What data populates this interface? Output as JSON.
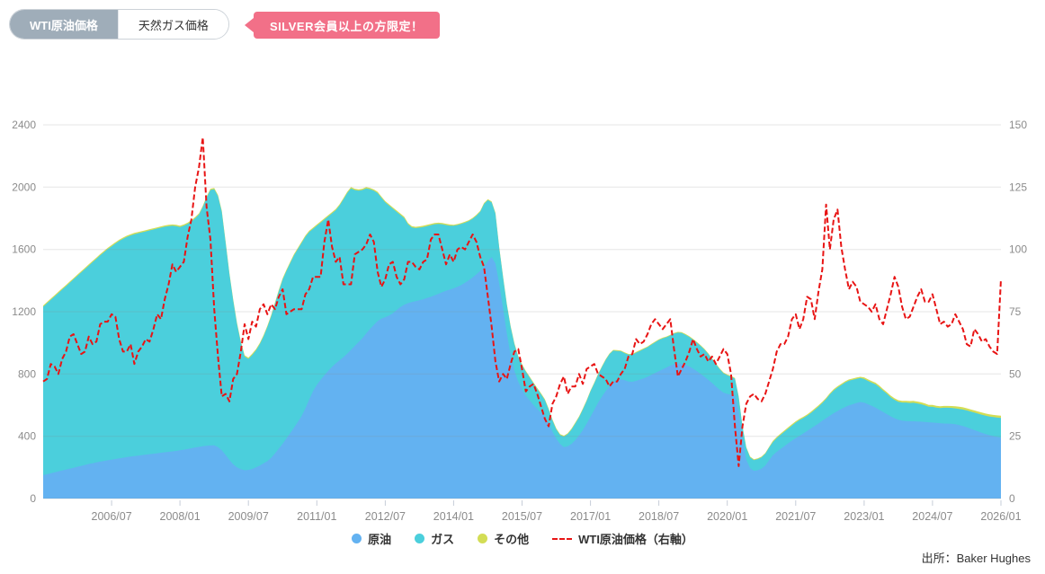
{
  "tabs": {
    "wti": "WTI原油価格",
    "gas": "天然ガス価格"
  },
  "badge": {
    "label": "SILVER会員以上の方限定！",
    "color": "#f27088"
  },
  "source": "出所：Baker Hughes",
  "chart_data": {
    "type": "area",
    "subtype": "stacked-area-with-line",
    "x_monthly_start": "2005/01",
    "x_monthly_end": "2026/01",
    "x_tick_labels": [
      "2006/07",
      "2008/01",
      "2009/07",
      "2011/01",
      "2012/07",
      "2014/01",
      "2015/07",
      "2017/01",
      "2018/07",
      "2020/01",
      "2021/07",
      "2023/01",
      "2024/07",
      "2026/01"
    ],
    "x_tick_month_index": [
      18,
      36,
      54,
      72,
      90,
      108,
      126,
      144,
      162,
      180,
      198,
      216,
      234,
      252
    ],
    "y_left": {
      "min": 0,
      "max": 2400,
      "ticks": [
        0,
        400,
        800,
        1200,
        1600,
        2000,
        2400
      ]
    },
    "y_right": {
      "min": 0,
      "max": 150,
      "ticks": [
        0,
        25,
        50,
        75,
        100,
        125,
        150
      ]
    },
    "grid": "horizontal",
    "legend_position": "bottom-center",
    "series": {
      "oil": {
        "label": "原油",
        "color": "#63b2f1",
        "axis": "left",
        "values": [
          150,
          156,
          162,
          168,
          174,
          180,
          186,
          192,
          198,
          204,
          210,
          216,
          222,
          227,
          232,
          237,
          242,
          246,
          250,
          254,
          258,
          262,
          266,
          270,
          273,
          276,
          279,
          282,
          285,
          288,
          291,
          294,
          297,
          300,
          303,
          306,
          310,
          314,
          318,
          323,
          328,
          332,
          336,
          339,
          341,
          342,
          330,
          310,
          280,
          248,
          220,
          200,
          188,
          182,
          184,
          190,
          200,
          212,
          226,
          240,
          262,
          290,
          320,
          352,
          386,
          420,
          455,
          492,
          530,
          580,
          635,
          690,
          730,
          762,
          792,
          820,
          846,
          868,
          888,
          908,
          930,
          955,
          980,
          1005,
          1030,
          1060,
          1090,
          1115,
          1140,
          1155,
          1165,
          1175,
          1190,
          1210,
          1230,
          1245,
          1255,
          1262,
          1268,
          1274,
          1280,
          1288,
          1296,
          1305,
          1315,
          1326,
          1335,
          1342,
          1350,
          1360,
          1372,
          1386,
          1402,
          1420,
          1440,
          1462,
          1490,
          1525,
          1550,
          1510,
          1380,
          1220,
          1060,
          920,
          820,
          750,
          700,
          660,
          630,
          600,
          575,
          550,
          530,
          480,
          430,
          385,
          350,
          330,
          335,
          350,
          375,
          405,
          440,
          480,
          525,
          570,
          615,
          655,
          690,
          720,
          745,
          762,
          766,
          760,
          752,
          750,
          756,
          764,
          772,
          782,
          794,
          806,
          818,
          830,
          842,
          854,
          862,
          868,
          866,
          858,
          848,
          834,
          818,
          800,
          782,
          762,
          742,
          720,
          698,
          680,
          672,
          668,
          664,
          560,
          380,
          250,
          195,
          178,
          182,
          192,
          212,
          246,
          278,
          300,
          318,
          336,
          354,
          372,
          388,
          402,
          418,
          434,
          450,
          466,
          482,
          500,
          516,
          532,
          548,
          562,
          576,
          588,
          598,
          606,
          614,
          620,
          616,
          606,
          596,
          584,
          570,
          556,
          542,
          528,
          516,
          506,
          500,
          498,
          497,
          496,
          495,
          494,
          492,
          490,
          488,
          486,
          484,
          482,
          481,
          480,
          477,
          472,
          466,
          458,
          449,
          440,
          431,
          422,
          414,
          407,
          401,
          396,
          392
        ]
      },
      "gas": {
        "label": "ガス",
        "color": "#4bcfdc",
        "axis": "left",
        "values": [
          1082,
          1098,
          1114,
          1130,
          1146,
          1162,
          1178,
          1194,
          1210,
          1226,
          1242,
          1258,
          1274,
          1291,
          1308,
          1325,
          1340,
          1356,
          1370,
          1384,
          1396,
          1406,
          1414,
          1420,
          1425,
          1428,
          1431,
          1434,
          1437,
          1440,
          1443,
          1446,
          1449,
          1450,
          1449,
          1444,
          1434,
          1438,
          1446,
          1457,
          1472,
          1492,
          1536,
          1593,
          1641,
          1645,
          1612,
          1532,
          1362,
          1194,
          1052,
          922,
          814,
          730,
          713,
          732,
          752,
          780,
          816,
          862,
          910,
          962,
          1012,
          1055,
          1076,
          1092,
          1107,
          1110,
          1112,
          1102,
          1077,
          1042,
          1022,
          1010,
          1000,
          992,
          986,
          984,
          994,
          1014,
          1032,
          1037,
          1002,
          972,
          952,
          932,
          897,
          862,
          822,
          777,
          737,
          707,
          672,
          632,
          592,
          557,
          507,
          480,
          469,
          466,
          464,
          462,
          460,
          457,
          449,
          436,
          422,
          410,
          402,
          397,
          392,
          386,
          380,
          377,
          377,
          380,
          402,
          392,
          352,
          320,
          230,
          200,
          184,
          182,
          172,
          160,
          157,
          154,
          147,
          140,
          129,
          120,
          102,
          92,
          72,
          60,
          58,
          68,
          78,
          92,
          107,
          117,
          132,
          146,
          164,
          170,
          180,
          190,
          200,
          207,
          205,
          186,
          180,
          174,
          172,
          173,
          181,
          184,
          188,
          190,
          194,
          197,
          200,
          198,
          194,
          193,
          197,
          198,
          198,
          194,
          190,
          186,
          183,
          180,
          174,
          166,
          153,
          143,
          133,
          125,
          120,
          115,
          106,
          92,
          80,
          76,
          70,
          69,
          71,
          73,
          76,
          81,
          85,
          88,
          91,
          93,
          95,
          97,
          100,
          102,
          99,
          98,
          100,
          104,
          108,
          114,
          123,
          137,
          146,
          151,
          153,
          157,
          159,
          157,
          155,
          154,
          152,
          150,
          148,
          150,
          145,
          137,
          131,
          123,
          118,
          116,
          117,
          119,
          117,
          119,
          116,
          112,
          107,
          100,
          101,
          98,
          97,
          101,
          102,
          102,
          102,
          104,
          106,
          108,
          110,
          112,
          114,
          116,
          118,
          120,
          122,
          124,
          126
        ]
      },
      "other": {
        "label": "その他",
        "color": "#d3dd55",
        "axis": "left",
        "values": [
          8,
          8,
          8,
          8,
          8,
          8,
          8,
          8,
          8,
          8,
          8,
          8,
          8,
          8,
          8,
          8,
          8,
          8,
          8,
          8,
          8,
          8,
          8,
          8,
          8,
          8,
          8,
          8,
          8,
          8,
          8,
          8,
          8,
          8,
          8,
          8,
          8,
          8,
          8,
          8,
          8,
          8,
          8,
          8,
          8,
          8,
          8,
          8,
          8,
          8,
          8,
          8,
          8,
          8,
          8,
          8,
          8,
          8,
          8,
          8,
          8,
          8,
          8,
          8,
          8,
          8,
          8,
          8,
          8,
          8,
          8,
          8,
          8,
          8,
          8,
          8,
          8,
          8,
          8,
          8,
          8,
          8,
          8,
          8,
          8,
          8,
          8,
          8,
          8,
          8,
          8,
          8,
          8,
          8,
          8,
          8,
          8,
          8,
          8,
          8,
          8,
          8,
          8,
          8,
          8,
          8,
          8,
          8,
          6,
          6,
          6,
          6,
          6,
          6,
          6,
          6,
          6,
          6,
          6,
          6,
          6,
          6,
          6,
          6,
          6,
          6,
          6,
          6,
          6,
          6,
          6,
          6,
          6,
          6,
          6,
          6,
          6,
          6,
          6,
          6,
          6,
          6,
          6,
          6,
          5,
          5,
          5,
          5,
          5,
          5,
          5,
          5,
          5,
          5,
          5,
          5,
          5,
          5,
          5,
          5,
          5,
          5,
          5,
          5,
          5,
          5,
          5,
          5,
          5,
          5,
          5,
          5,
          5,
          5,
          5,
          5,
          5,
          5,
          5,
          5,
          5,
          5,
          5,
          5,
          5,
          5,
          5,
          5,
          5,
          5,
          5,
          5,
          8,
          8,
          8,
          8,
          8,
          8,
          8,
          8,
          8,
          8,
          8,
          8,
          8,
          8,
          8,
          8,
          8,
          8,
          8,
          8,
          8,
          8,
          8,
          8,
          10,
          10,
          10,
          10,
          10,
          10,
          10,
          10,
          10,
          10,
          10,
          10,
          12,
          12,
          12,
          12,
          12,
          12,
          12,
          12,
          12,
          12,
          12,
          12,
          14,
          14,
          14,
          14,
          14,
          14,
          14,
          14,
          14,
          14,
          14,
          14,
          14
        ]
      },
      "wti": {
        "label": "WTI原油価格（右軸）",
        "color": "#e81414",
        "axis": "right",
        "style": "dashed",
        "values": [
          47,
          48,
          54,
          53,
          50,
          56,
          59,
          65,
          66,
          62,
          58,
          59,
          65,
          62,
          63,
          70,
          71,
          71,
          74,
          73,
          64,
          59,
          59,
          62,
          54,
          59,
          61,
          64,
          63,
          68,
          74,
          72,
          80,
          86,
          94,
          91,
          93,
          95,
          105,
          112,
          125,
          133,
          145,
          117,
          104,
          76,
          57,
          41,
          42,
          39,
          48,
          50,
          59,
          70,
          64,
          71,
          69,
          76,
          78,
          74,
          78,
          76,
          81,
          84,
          74,
          75,
          76,
          76,
          76,
          82,
          84,
          89,
          89,
          89,
          103,
          112,
          101,
          95,
          97,
          86,
          86,
          86,
          98,
          99,
          100,
          102,
          106,
          103,
          91,
          85,
          88,
          94,
          95,
          89,
          86,
          88,
          95,
          95,
          93,
          92,
          95,
          96,
          104,
          106,
          106,
          100,
          94,
          98,
          95,
          100,
          101,
          100,
          103,
          106,
          103,
          97,
          93,
          81,
          69,
          55,
          47,
          50,
          48,
          54,
          59,
          60,
          52,
          43,
          45,
          46,
          42,
          37,
          32,
          29,
          38,
          41,
          46,
          49,
          42,
          45,
          45,
          50,
          46,
          52,
          53,
          54,
          50,
          49,
          48,
          45,
          47,
          47,
          50,
          52,
          57,
          58,
          64,
          62,
          63,
          66,
          70,
          72,
          70,
          68,
          70,
          72,
          60,
          49,
          52,
          55,
          59,
          64,
          60,
          57,
          58,
          55,
          57,
          54,
          57,
          60,
          58,
          50,
          29,
          13,
          29,
          38,
          41,
          42,
          40,
          39,
          42,
          47,
          52,
          59,
          62,
          62,
          65,
          72,
          74,
          68,
          72,
          81,
          80,
          72,
          83,
          92,
          118,
          100,
          112,
          116,
          101,
          92,
          84,
          87,
          85,
          79,
          78,
          77,
          75,
          78,
          72,
          70,
          76,
          82,
          89,
          85,
          77,
          72,
          73,
          77,
          81,
          84,
          79,
          79,
          82,
          76,
          70,
          71,
          69,
          70,
          74,
          71,
          68,
          62,
          61,
          68,
          66,
          63,
          64,
          61,
          59,
          58,
          88
        ]
      }
    }
  }
}
